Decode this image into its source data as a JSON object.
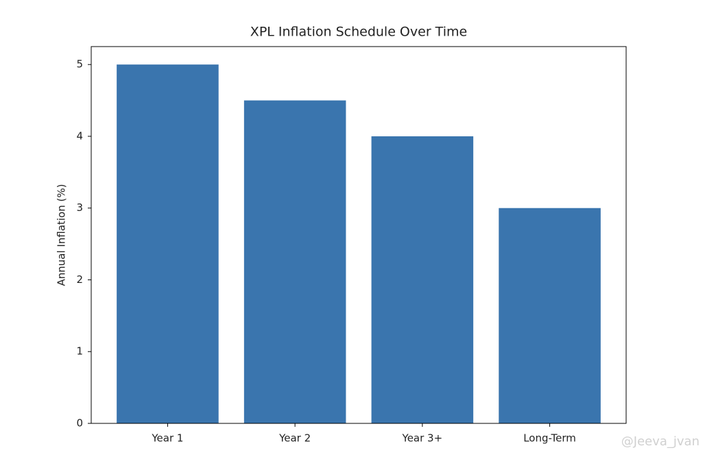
{
  "chart_data": {
    "type": "bar",
    "title": "XPL Inflation Schedule Over Time",
    "y_label": "Annual Inflation (%)",
    "categories": [
      "Year 1",
      "Year 2",
      "Year 3+",
      "Long-Term"
    ],
    "values": [
      5,
      4.5,
      4,
      3
    ],
    "color": "#3a75ae",
    "ylim": [
      0,
      5.25
    ],
    "yticks": [
      0,
      1,
      2,
      3,
      4,
      5
    ],
    "grid": false,
    "watermark": "@Jeeva_jvan"
  }
}
